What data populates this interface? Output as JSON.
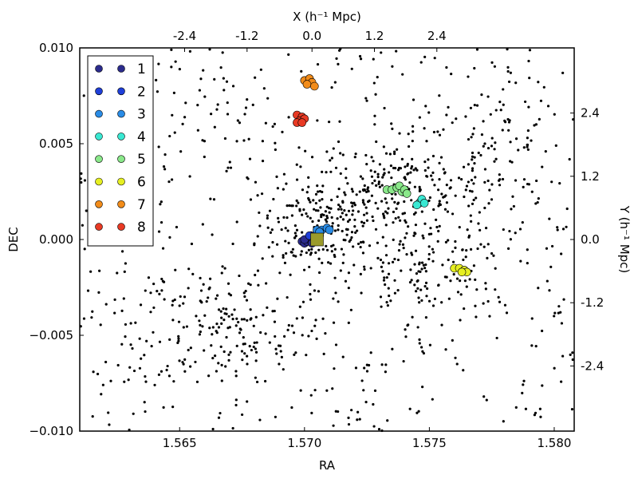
{
  "chart_data": {
    "type": "scatter",
    "title": "",
    "xlabel": "RA",
    "ylabel": "DEC",
    "top_label": "X (h⁻¹ Mpc)",
    "right_label": "Y (h⁻¹ Mpc)",
    "xlim": [
      1.561,
      1.5808
    ],
    "ylim": [
      -0.01,
      0.01
    ],
    "x_ticks": [
      1.565,
      1.57,
      1.575,
      1.58
    ],
    "x_tick_labels": [
      "1.565",
      "1.570",
      "1.575",
      "1.580"
    ],
    "y_ticks": [
      -0.01,
      -0.005,
      0.0,
      0.005,
      0.01
    ],
    "y_tick_labels": [
      "−0.010",
      "−0.005",
      "0.000",
      "0.005",
      "0.010"
    ],
    "top_ticks": [
      1.5652,
      1.5677,
      1.5703,
      1.5728,
      1.5753
    ],
    "top_tick_labels": [
      "-2.4",
      "-1.2",
      "0.0",
      "1.2",
      "2.4"
    ],
    "right_ticks": [
      0.0066,
      0.0033,
      0.0,
      -0.0033,
      -0.0066
    ],
    "right_tick_labels": [
      "2.4",
      "1.2",
      "0.0",
      "-1.2",
      "-2.4"
    ],
    "grid": false,
    "legend_position": "top-left",
    "legend": [
      "1",
      "2",
      "3",
      "4",
      "5",
      "6",
      "7",
      "8"
    ],
    "background_points": {
      "color": "#000000",
      "count": 1300,
      "clusters": [
        {
          "cx": 1.5706,
          "cy": 0.0008,
          "sx": 0.0012,
          "sy": 0.0012,
          "n": 170
        },
        {
          "cx": 1.5739,
          "cy": 0.0026,
          "sx": 0.0016,
          "sy": 0.0013,
          "n": 210
        },
        {
          "cx": 1.5748,
          "cy": -0.0018,
          "sx": 0.0016,
          "sy": 0.001,
          "n": 110
        },
        {
          "cx": 1.5775,
          "cy": 0.004,
          "sx": 0.0011,
          "sy": 0.002,
          "n": 80
        },
        {
          "cx": 1.567,
          "cy": -0.0045,
          "sx": 0.002,
          "sy": 0.0016,
          "n": 150
        }
      ]
    },
    "series": [
      {
        "name": "1",
        "color": "#2b2b8c",
        "points": [
          [
            1.5699,
            -0.0001
          ],
          [
            1.57,
            -0.0002
          ],
          [
            1.5701,
            -0.0001
          ],
          [
            1.5702,
            0.0
          ],
          [
            1.5703,
            -0.0002
          ],
          [
            1.57,
            0.0
          ]
        ]
      },
      {
        "name": "2",
        "color": "#1f3fd9",
        "points": [
          [
            1.5704,
            0.0002
          ],
          [
            1.5705,
            0.0001
          ],
          [
            1.5702,
            0.0002
          ],
          [
            1.5706,
            0.0003
          ],
          [
            1.5704,
            0.0
          ]
        ]
      },
      {
        "name": "3",
        "color": "#2a8ce6",
        "points": [
          [
            1.5705,
            0.0005
          ],
          [
            1.5707,
            0.0005
          ],
          [
            1.5709,
            0.0006
          ],
          [
            1.5706,
            0.0004
          ],
          [
            1.571,
            0.0005
          ]
        ]
      },
      {
        "name": "4",
        "color": "#39e8d2",
        "points": [
          [
            1.5746,
            0.0019
          ],
          [
            1.5747,
            0.0021
          ],
          [
            1.5748,
            0.0019
          ],
          [
            1.5745,
            0.0018
          ]
        ]
      },
      {
        "name": "5",
        "color": "#8ae88a",
        "points": [
          [
            1.5733,
            0.0026
          ],
          [
            1.5735,
            0.0026
          ],
          [
            1.5737,
            0.0027
          ],
          [
            1.5739,
            0.0025
          ],
          [
            1.5738,
            0.0028
          ],
          [
            1.574,
            0.0026
          ],
          [
            1.5741,
            0.0024
          ]
        ]
      },
      {
        "name": "6",
        "color": "#e6ef22",
        "points": [
          [
            1.576,
            -0.0015
          ],
          [
            1.5762,
            -0.0015
          ],
          [
            1.5764,
            -0.0016
          ],
          [
            1.5765,
            -0.0017
          ],
          [
            1.5763,
            -0.0017
          ]
        ]
      },
      {
        "name": "7",
        "color": "#f28c1a",
        "points": [
          [
            1.57,
            0.0083
          ],
          [
            1.5702,
            0.0084
          ],
          [
            1.5703,
            0.0082
          ],
          [
            1.5701,
            0.0081
          ],
          [
            1.5704,
            0.008
          ]
        ]
      },
      {
        "name": "8",
        "color": "#e83a24",
        "points": [
          [
            1.5697,
            0.0065
          ],
          [
            1.5699,
            0.0064
          ],
          [
            1.5698,
            0.0062
          ],
          [
            1.57,
            0.0063
          ],
          [
            1.5697,
            0.0061
          ],
          [
            1.5699,
            0.0061
          ]
        ]
      }
    ],
    "center_marker": {
      "shape": "square",
      "color": "#9b9b2a",
      "x": 1.5705,
      "y": 0.0
    }
  }
}
